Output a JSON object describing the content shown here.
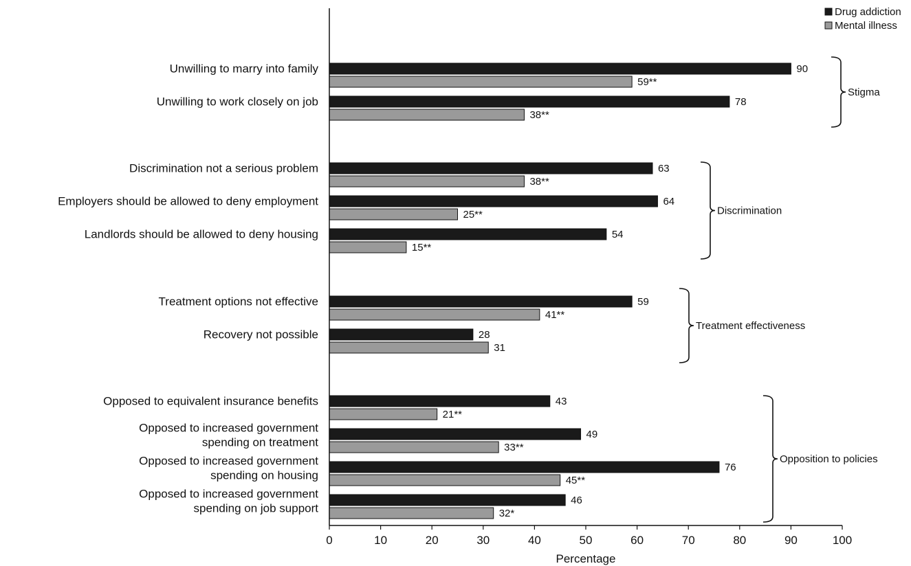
{
  "chart_data": {
    "type": "bar",
    "orientation": "horizontal",
    "title": "",
    "xlabel": "Percentage",
    "ylabel": "",
    "xlim": [
      0,
      100
    ],
    "x_ticks": [
      "0",
      "10",
      "20",
      "30",
      "40",
      "50",
      "60",
      "70",
      "80",
      "90",
      "100"
    ],
    "grid": false,
    "legend_position": "top-right",
    "categories": [
      [
        "Unwilling to marry into family"
      ],
      [
        "Unwilling to work closely on job"
      ],
      [
        "Discrimination not a serious problem"
      ],
      [
        "Employers should be allowed to deny employment"
      ],
      [
        "Landlords should be allowed to deny housing"
      ],
      [
        "Treatment options not effective"
      ],
      [
        "Recovery not possible"
      ],
      [
        "Opposed to equivalent insurance benefits"
      ],
      [
        "Opposed to increased government",
        "spending on treatment"
      ],
      [
        "Opposed to increased government",
        "spending on housing"
      ],
      [
        "Opposed to increased government",
        "spending on job support"
      ]
    ],
    "series": [
      {
        "name": "Drug addiction",
        "color": "#1a1a1a",
        "values": [
          90,
          78,
          63,
          64,
          54,
          59,
          28,
          43,
          49,
          76,
          46
        ],
        "labels": [
          "90",
          "78",
          "63",
          "64",
          "54",
          "59",
          "28",
          "43",
          "49",
          "76",
          "46"
        ]
      },
      {
        "name": "Mental illness",
        "color": "#9a9a9a",
        "values": [
          59,
          38,
          38,
          25,
          15,
          41,
          31,
          21,
          33,
          45,
          32
        ],
        "labels": [
          "59**",
          "38**",
          "38**",
          "25**",
          "15**",
          "41**",
          "31",
          "21**",
          "33**",
          "45**",
          "32*"
        ]
      }
    ],
    "groups": [
      {
        "label": "Stigma",
        "from": 0,
        "to": 1
      },
      {
        "label": "Discrimination",
        "from": 2,
        "to": 4
      },
      {
        "label": "Treatment effectiveness",
        "from": 5,
        "to": 6
      },
      {
        "label": "Opposition to policies",
        "from": 7,
        "to": 10
      }
    ]
  }
}
